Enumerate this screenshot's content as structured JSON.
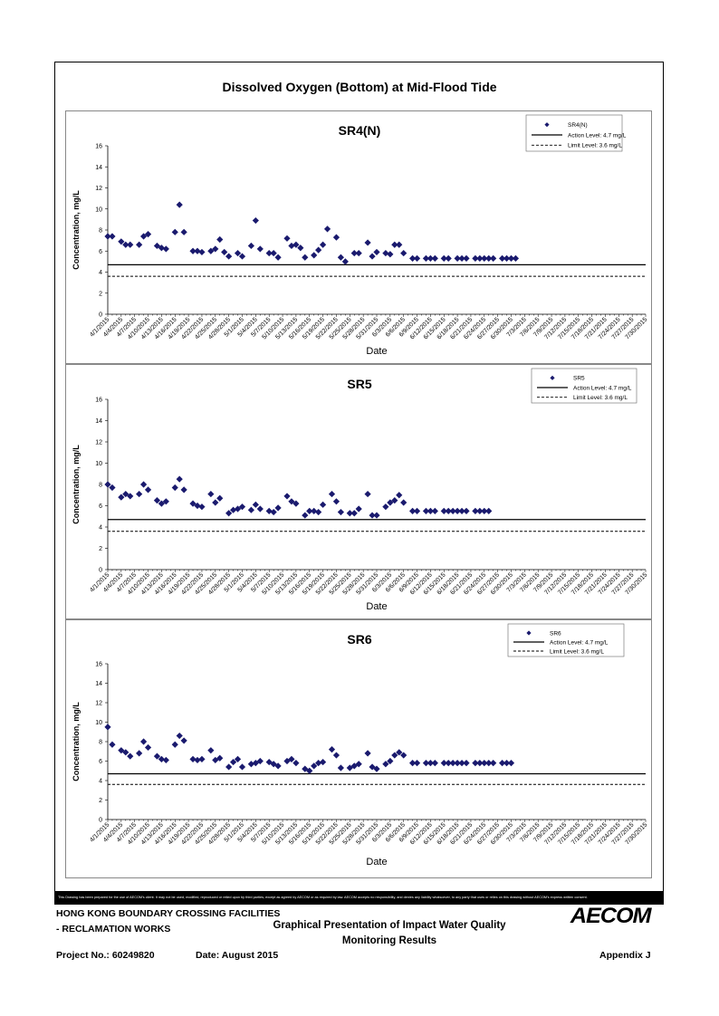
{
  "title": "Dissolved Oxygen (Bottom) at Mid-Flood Tide",
  "chart_data": [
    {
      "type": "scatter",
      "title": "SR4(N)",
      "xlabel": "Date",
      "ylabel": "Concentration, mg/L",
      "ylim": [
        0,
        16
      ],
      "yticks": [
        0,
        2,
        4,
        6,
        8,
        10,
        12,
        14,
        16
      ],
      "x_ticks": [
        "4/1/2015",
        "4/4/2015",
        "4/7/2015",
        "4/10/2015",
        "4/13/2015",
        "4/16/2015",
        "4/19/2015",
        "4/22/2015",
        "4/25/2015",
        "4/28/2015",
        "5/1/2015",
        "5/4/2015",
        "5/7/2015",
        "5/10/2015",
        "5/13/2015",
        "5/16/2015",
        "5/19/2015",
        "5/22/2015",
        "5/25/2015",
        "5/28/2015",
        "5/31/2015",
        "6/3/2015",
        "6/6/2015",
        "6/9/2015",
        "6/12/2015",
        "6/15/2015",
        "6/18/2015",
        "6/21/2015",
        "6/24/2015",
        "6/27/2015",
        "6/30/2015",
        "7/3/2015",
        "7/6/2015",
        "7/9/2015",
        "7/12/2015",
        "7/15/2015",
        "7/18/2015",
        "7/21/2015",
        "7/24/2015",
        "7/27/2015",
        "7/30/2015"
      ],
      "legend": [
        {
          "label": "SR4(N)",
          "style": "marker"
        },
        {
          "label": "Action Level: 4.7 mg/L",
          "style": "solid"
        },
        {
          "label": "Limit Level: 3.6 mg/L",
          "style": "dashed"
        }
      ],
      "action_level": 4.7,
      "limit_level": 3.6,
      "series": [
        {
          "name": "SR4(N)",
          "x": [
            0,
            1,
            3,
            4,
            5,
            7,
            8,
            9,
            11,
            12,
            13,
            15,
            16,
            17,
            19,
            20,
            21,
            23,
            24,
            25,
            26,
            27,
            29,
            30,
            32,
            33,
            34,
            36,
            37,
            38,
            40,
            41,
            42,
            43,
            44,
            46,
            47,
            48,
            49,
            51,
            52,
            53,
            55,
            56,
            58,
            59,
            60,
            62,
            63,
            64,
            65,
            66,
            68,
            69,
            71,
            72,
            73,
            75,
            76,
            78,
            79,
            80,
            82,
            83,
            84,
            85,
            86,
            88,
            89,
            90,
            91
          ],
          "y": [
            7.4,
            7.4,
            6.9,
            6.6,
            6.6,
            6.6,
            7.4,
            7.6,
            6.5,
            6.3,
            6.2,
            7.8,
            10.4,
            7.8,
            6.0,
            6.0,
            5.9,
            6.0,
            6.2,
            7.1,
            5.9,
            5.5,
            5.8,
            5.5,
            6.5,
            8.9,
            6.2,
            5.8,
            5.8,
            5.4,
            7.2,
            6.5,
            6.6,
            6.3,
            5.4,
            5.6,
            6.1,
            6.6,
            8.1,
            7.3,
            5.4,
            5.0,
            5.8,
            5.8,
            6.8,
            5.5,
            5.9,
            5.8,
            5.7,
            6.6,
            6.6,
            5.8,
            5.3,
            5.3,
            5.3,
            5.3,
            5.3,
            5.3,
            5.3,
            5.3,
            5.3,
            5.3,
            5.3,
            5.3,
            5.3,
            5.3,
            5.3,
            5.3,
            5.3,
            5.3,
            5.3
          ]
        }
      ]
    },
    {
      "type": "scatter",
      "title": "SR5",
      "xlabel": "Date",
      "ylabel": "Concentration, mg/L",
      "ylim": [
        0,
        16
      ],
      "yticks": [
        0,
        2,
        4,
        6,
        8,
        10,
        12,
        14,
        16
      ],
      "x_ticks": [
        "4/1/2015",
        "4/4/2015",
        "4/7/2015",
        "4/10/2015",
        "4/13/2015",
        "4/16/2015",
        "4/19/2015",
        "4/22/2015",
        "4/25/2015",
        "4/28/2015",
        "5/1/2015",
        "5/4/2015",
        "5/7/2015",
        "5/10/2015",
        "5/13/2015",
        "5/16/2015",
        "5/19/2015",
        "5/22/2015",
        "5/25/2015",
        "5/28/2015",
        "5/31/2015",
        "6/3/2015",
        "6/6/2015",
        "6/9/2015",
        "6/12/2015",
        "6/15/2015",
        "6/18/2015",
        "6/21/2015",
        "6/24/2015",
        "6/27/2015",
        "6/30/2015",
        "7/3/2015",
        "7/6/2015",
        "7/9/2015",
        "7/12/2015",
        "7/15/2015",
        "7/18/2015",
        "7/21/2015",
        "7/24/2015",
        "7/27/2015",
        "7/30/2015"
      ],
      "legend": [
        {
          "label": "SR5",
          "style": "marker"
        },
        {
          "label": "Action Level: 4.7 mg/L",
          "style": "solid"
        },
        {
          "label": "Limit Level: 3.6 mg/L",
          "style": "dashed"
        }
      ],
      "action_level": 4.7,
      "limit_level": 3.6,
      "series": [
        {
          "name": "SR5",
          "x": [
            0,
            1,
            3,
            4,
            5,
            7,
            8,
            9,
            11,
            12,
            13,
            15,
            16,
            17,
            19,
            20,
            21,
            23,
            24,
            25,
            27,
            28,
            29,
            30,
            32,
            33,
            34,
            36,
            37,
            38,
            40,
            41,
            42,
            44,
            45,
            46,
            47,
            48,
            50,
            51,
            52,
            54,
            55,
            56,
            58,
            59,
            60,
            62,
            63,
            64,
            65,
            66,
            68,
            69,
            71,
            72,
            73,
            75,
            76,
            77,
            78,
            79,
            80,
            82,
            83,
            84,
            85
          ],
          "y": [
            8.0,
            7.7,
            6.8,
            7.1,
            6.9,
            7.1,
            8.0,
            7.5,
            6.5,
            6.2,
            6.4,
            7.7,
            8.5,
            7.5,
            6.2,
            6.0,
            5.9,
            7.1,
            6.3,
            6.7,
            5.3,
            5.6,
            5.7,
            5.9,
            5.6,
            6.1,
            5.7,
            5.5,
            5.4,
            5.8,
            6.9,
            6.4,
            6.2,
            5.1,
            5.5,
            5.5,
            5.4,
            6.1,
            7.1,
            6.4,
            5.4,
            5.3,
            5.3,
            5.7,
            7.1,
            5.1,
            5.1,
            5.9,
            6.3,
            6.5,
            7.0,
            6.3,
            5.5,
            5.5,
            5.5,
            5.5,
            5.5,
            5.5,
            5.5,
            5.5,
            5.5,
            5.5,
            5.5,
            5.5,
            5.5,
            5.5,
            5.5
          ]
        }
      ]
    },
    {
      "type": "scatter",
      "title": "SR6",
      "xlabel": "Date",
      "ylabel": "Concentration, mg/L",
      "ylim": [
        0,
        16
      ],
      "yticks": [
        0,
        2,
        4,
        6,
        8,
        10,
        12,
        14,
        16
      ],
      "x_ticks": [
        "4/1/2015",
        "4/4/2015",
        "4/7/2015",
        "4/10/2015",
        "4/13/2015",
        "4/16/2015",
        "4/19/2015",
        "4/22/2015",
        "4/25/2015",
        "4/28/2015",
        "5/1/2015",
        "5/4/2015",
        "5/7/2015",
        "5/10/2015",
        "5/13/2015",
        "5/16/2015",
        "5/19/2015",
        "5/22/2015",
        "5/25/2015",
        "5/28/2015",
        "5/31/2015",
        "6/3/2015",
        "6/6/2015",
        "6/9/2015",
        "6/12/2015",
        "6/15/2015",
        "6/18/2015",
        "6/21/2015",
        "6/24/2015",
        "6/27/2015",
        "6/30/2015",
        "7/3/2015",
        "7/6/2015",
        "7/9/2015",
        "7/12/2015",
        "7/15/2015",
        "7/18/2015",
        "7/21/2015",
        "7/24/2015",
        "7/27/2015",
        "7/30/2015"
      ],
      "legend": [
        {
          "label": "SR6",
          "style": "marker"
        },
        {
          "label": "Action Level: 4.7 mg/L",
          "style": "solid"
        },
        {
          "label": "Limit Level: 3.6 mg/L",
          "style": "dashed"
        }
      ],
      "action_level": 4.7,
      "limit_level": 3.6,
      "series": [
        {
          "name": "SR6",
          "x": [
            0,
            1,
            3,
            4,
            5,
            7,
            8,
            9,
            11,
            12,
            13,
            15,
            16,
            17,
            19,
            20,
            21,
            23,
            24,
            25,
            27,
            28,
            29,
            30,
            32,
            33,
            34,
            36,
            37,
            38,
            40,
            41,
            42,
            44,
            45,
            46,
            47,
            48,
            50,
            51,
            52,
            54,
            55,
            56,
            58,
            59,
            60,
            62,
            63,
            64,
            65,
            66,
            68,
            69,
            71,
            72,
            73,
            75,
            76,
            77,
            78,
            79,
            80,
            82,
            83,
            84,
            85,
            86,
            88,
            89,
            90
          ],
          "y": [
            9.5,
            7.7,
            7.1,
            6.9,
            6.5,
            6.8,
            8.0,
            7.4,
            6.5,
            6.2,
            6.1,
            7.7,
            8.6,
            8.1,
            6.2,
            6.1,
            6.2,
            7.1,
            6.1,
            6.3,
            5.4,
            5.9,
            6.2,
            5.4,
            5.7,
            5.8,
            6.0,
            5.9,
            5.7,
            5.5,
            6.0,
            6.2,
            5.8,
            5.2,
            5.0,
            5.5,
            5.8,
            5.9,
            7.2,
            6.6,
            5.3,
            5.3,
            5.5,
            5.7,
            6.8,
            5.4,
            5.2,
            5.7,
            6.0,
            6.6,
            6.9,
            6.6,
            5.8,
            5.8,
            5.8,
            5.8,
            5.8,
            5.8,
            5.8,
            5.8,
            5.8,
            5.8,
            5.8,
            5.8,
            5.8,
            5.8,
            5.8,
            5.8,
            5.8,
            5.8,
            5.8
          ]
        }
      ]
    }
  ],
  "disclaimer": "This Drawing has been prepared for the use of AECOM's client. It may not be used, modified, reproduced or relied upon by third parties, except as agreed by AECOM or as required by law. AECOM accepts no responsibility, and denies any liability whatsoever, to any party that uses or relies on this drawing without AECOM's express written consent.",
  "footer": {
    "left_line1": "HONG KONG BOUNDARY CROSSING FACILITIES",
    "left_line2": "- RECLAMATION WORKS",
    "center_line1": "Graphical Presentation of Impact Water Quality",
    "center_line2": "Monitoring Results",
    "project": "Project No.: 60249820",
    "date": "Date: August 2015",
    "appendix": "Appendix J",
    "logo_text": "AECOM"
  }
}
